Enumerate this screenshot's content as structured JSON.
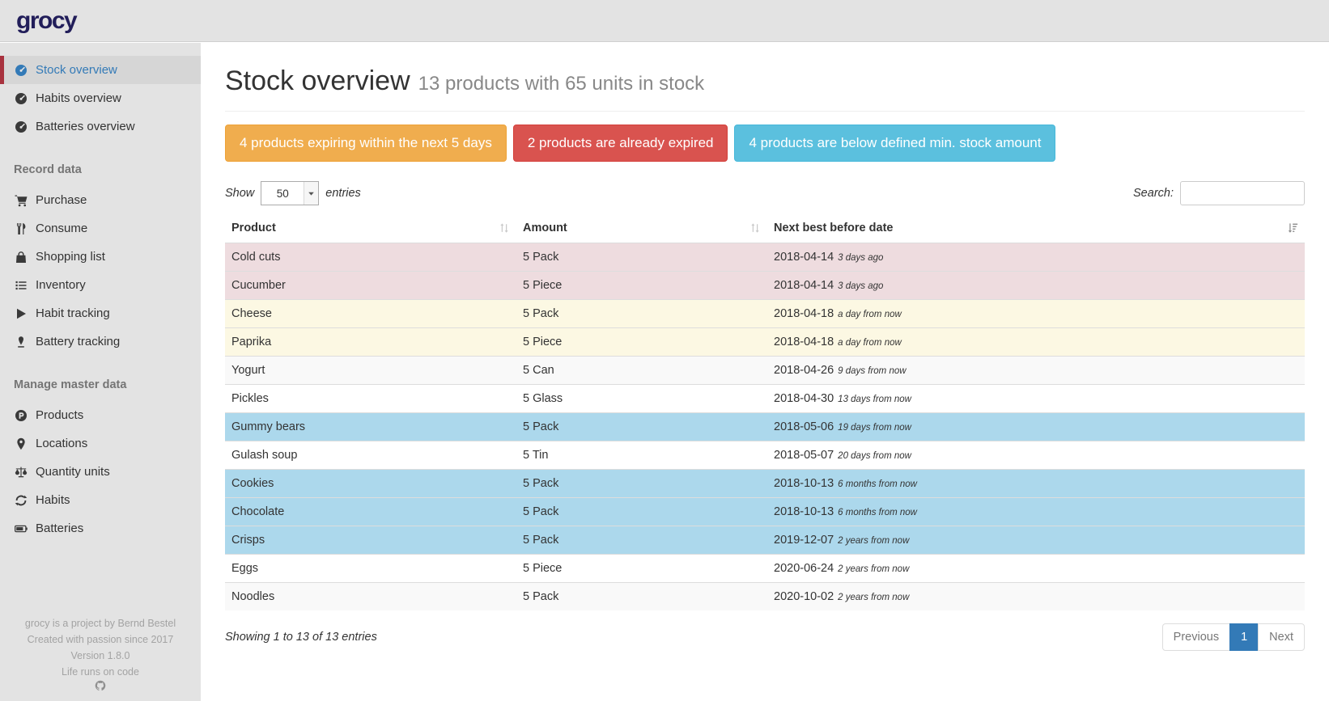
{
  "app": {
    "logo": "grocy"
  },
  "colors": {
    "accent_active_link": "#337ab7",
    "active_item_border": "#a8323e",
    "alert_warning": "#f0ad4e",
    "alert_danger": "#d9534f",
    "alert_info": "#5bc0de",
    "row_expired": "#eedcdf",
    "row_expiring_soon": "#fcf8e3",
    "row_below_min_stock": "#acd8ec",
    "pagination_active": "#337ab7"
  },
  "sidebar": {
    "sections": [
      {
        "header": null,
        "items": [
          {
            "label": "Stock overview",
            "icon": "tachometer-icon",
            "active": true
          },
          {
            "label": "Habits overview",
            "icon": "tachometer-icon",
            "active": false
          },
          {
            "label": "Batteries overview",
            "icon": "tachometer-icon",
            "active": false
          }
        ]
      },
      {
        "header": "Record data",
        "items": [
          {
            "label": "Purchase",
            "icon": "shopping-cart-icon",
            "active": false
          },
          {
            "label": "Consume",
            "icon": "utensils-icon",
            "active": false
          },
          {
            "label": "Shopping list",
            "icon": "shopping-bag-icon",
            "active": false
          },
          {
            "label": "Inventory",
            "icon": "list-icon",
            "active": false
          },
          {
            "label": "Habit tracking",
            "icon": "play-icon",
            "active": false
          },
          {
            "label": "Battery tracking",
            "icon": "battery-drop-icon",
            "active": false
          }
        ]
      },
      {
        "header": "Manage master data",
        "items": [
          {
            "label": "Products",
            "icon": "product-icon",
            "active": false
          },
          {
            "label": "Locations",
            "icon": "map-marker-icon",
            "active": false
          },
          {
            "label": "Quantity units",
            "icon": "balance-scale-icon",
            "active": false
          },
          {
            "label": "Habits",
            "icon": "sync-icon",
            "active": false
          },
          {
            "label": "Batteries",
            "icon": "battery-icon",
            "active": false
          }
        ]
      }
    ],
    "footer": {
      "lines": [
        "grocy is a project by Bernd Bestel",
        "Created with passion since 2017",
        "Version 1.8.0",
        "Life runs on code"
      ],
      "icon": "github-icon"
    }
  },
  "page": {
    "title": "Stock overview",
    "subtitle": "13 products with 65 units in stock"
  },
  "alerts": [
    {
      "label": "4 products expiring within the next 5 days",
      "type": "warning",
      "bg": "#f0ad4e",
      "border": "#eea236"
    },
    {
      "label": "2 products are already expired",
      "type": "danger",
      "bg": "#d9534f",
      "border": "#d43f3a"
    },
    {
      "label": "4 products are below defined min. stock amount",
      "type": "info",
      "bg": "#5bc0de",
      "border": "#46b8da"
    }
  ],
  "controls": {
    "show_label": "Show",
    "page_length": "50",
    "entries_label": "entries",
    "search_label": "Search:",
    "search_value": ""
  },
  "table": {
    "columns": [
      {
        "label": "Product",
        "sort": "both"
      },
      {
        "label": "Amount",
        "sort": "both"
      },
      {
        "label": "Next best before date",
        "sort": "none"
      },
      {
        "label": "",
        "sort": "amount"
      }
    ],
    "rows": [
      {
        "product": "Cold cuts",
        "amount": "5 Pack",
        "date": "2018-04-14",
        "relative": "3 days ago",
        "status": "expired"
      },
      {
        "product": "Cucumber",
        "amount": "5 Piece",
        "date": "2018-04-14",
        "relative": "3 days ago",
        "status": "expired"
      },
      {
        "product": "Cheese",
        "amount": "5 Pack",
        "date": "2018-04-18",
        "relative": "a day from now",
        "status": "expiring-soon"
      },
      {
        "product": "Paprika",
        "amount": "5 Piece",
        "date": "2018-04-18",
        "relative": "a day from now",
        "status": "expiring-soon"
      },
      {
        "product": "Yogurt",
        "amount": "5 Can",
        "date": "2018-04-26",
        "relative": "9 days from now",
        "status": "none"
      },
      {
        "product": "Pickles",
        "amount": "5 Glass",
        "date": "2018-04-30",
        "relative": "13 days from now",
        "status": "none"
      },
      {
        "product": "Gummy bears",
        "amount": "5 Pack",
        "date": "2018-05-06",
        "relative": "19 days from now",
        "status": "below-min"
      },
      {
        "product": "Gulash soup",
        "amount": "5 Tin",
        "date": "2018-05-07",
        "relative": "20 days from now",
        "status": "none"
      },
      {
        "product": "Cookies",
        "amount": "5 Pack",
        "date": "2018-10-13",
        "relative": "6 months from now",
        "status": "below-min"
      },
      {
        "product": "Chocolate",
        "amount": "5 Pack",
        "date": "2018-10-13",
        "relative": "6 months from now",
        "status": "below-min"
      },
      {
        "product": "Crisps",
        "amount": "5 Pack",
        "date": "2019-12-07",
        "relative": "2 years from now",
        "status": "below-min"
      },
      {
        "product": "Eggs",
        "amount": "5 Piece",
        "date": "2020-06-24",
        "relative": "2 years from now",
        "status": "none"
      },
      {
        "product": "Noodles",
        "amount": "5 Pack",
        "date": "2020-10-02",
        "relative": "2 years from now",
        "status": "none"
      }
    ]
  },
  "footer": {
    "summary": "Showing 1 to 13 of 13 entries",
    "pagination": {
      "previous": "Previous",
      "current": "1",
      "next": "Next"
    }
  }
}
